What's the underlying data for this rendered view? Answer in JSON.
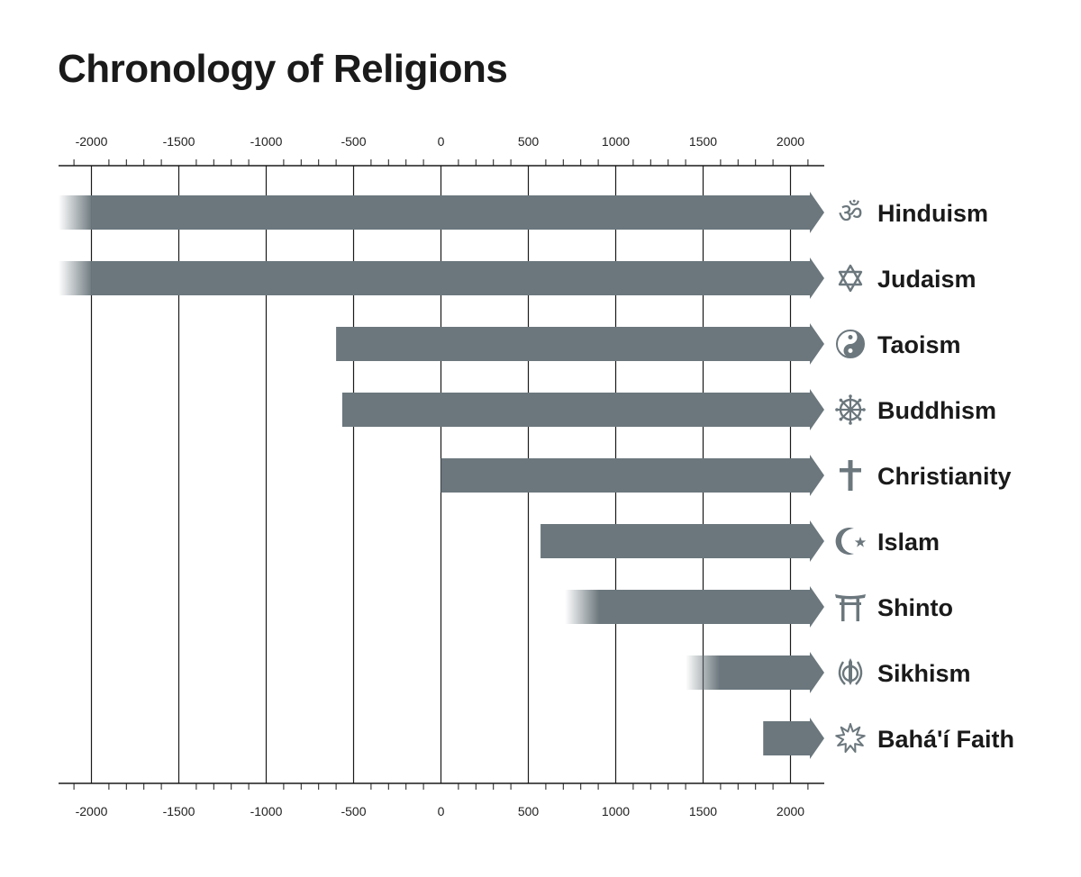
{
  "title": "Chronology of Religions",
  "colors": {
    "bar": "#6b777d",
    "axis": "#1a1a1a",
    "text": "#1a1a1a",
    "background": "#ffffff"
  },
  "chart_data": {
    "type": "bar",
    "orientation": "horizontal",
    "title": "Chronology of Religions",
    "xlabel": "",
    "ylabel": "",
    "xlim": [
      -2200,
      2200
    ],
    "ticks": [
      -2000,
      -1500,
      -1000,
      -500,
      0,
      500,
      1000,
      1500,
      2000
    ],
    "tick_labels": [
      "-2000",
      "-1500",
      "-1000",
      "-500",
      "0",
      "500",
      "1000",
      "1500",
      "2000"
    ],
    "minor_tick_step": 100,
    "grid": true,
    "axis_position": "top-and-bottom",
    "series": [
      {
        "label": "Hinduism",
        "icon": "om-icon",
        "start": -2200,
        "end": 2200,
        "faded_start": true
      },
      {
        "label": "Judaism",
        "icon": "star-of-david-icon",
        "start": -2200,
        "end": 2200,
        "faded_start": true
      },
      {
        "label": "Taoism",
        "icon": "yin-yang-icon",
        "start": -600,
        "end": 2200,
        "faded_start": false
      },
      {
        "label": "Buddhism",
        "icon": "dharma-wheel-icon",
        "start": -565,
        "end": 2200,
        "faded_start": false
      },
      {
        "label": "Christianity",
        "icon": "cross-icon",
        "start": 0,
        "end": 2200,
        "faded_start": false
      },
      {
        "label": "Islam",
        "icon": "crescent-star-icon",
        "start": 570,
        "end": 2200,
        "faded_start": false
      },
      {
        "label": "Shinto",
        "icon": "torii-gate-icon",
        "start": 710,
        "end": 2200,
        "faded_start": true
      },
      {
        "label": "Sikhism",
        "icon": "khanda-icon",
        "start": 1400,
        "end": 2200,
        "faded_start": true
      },
      {
        "label": "Bahá'í Faith",
        "icon": "nine-pointed-star-icon",
        "start": 1844,
        "end": 2200,
        "faded_start": false
      }
    ]
  }
}
